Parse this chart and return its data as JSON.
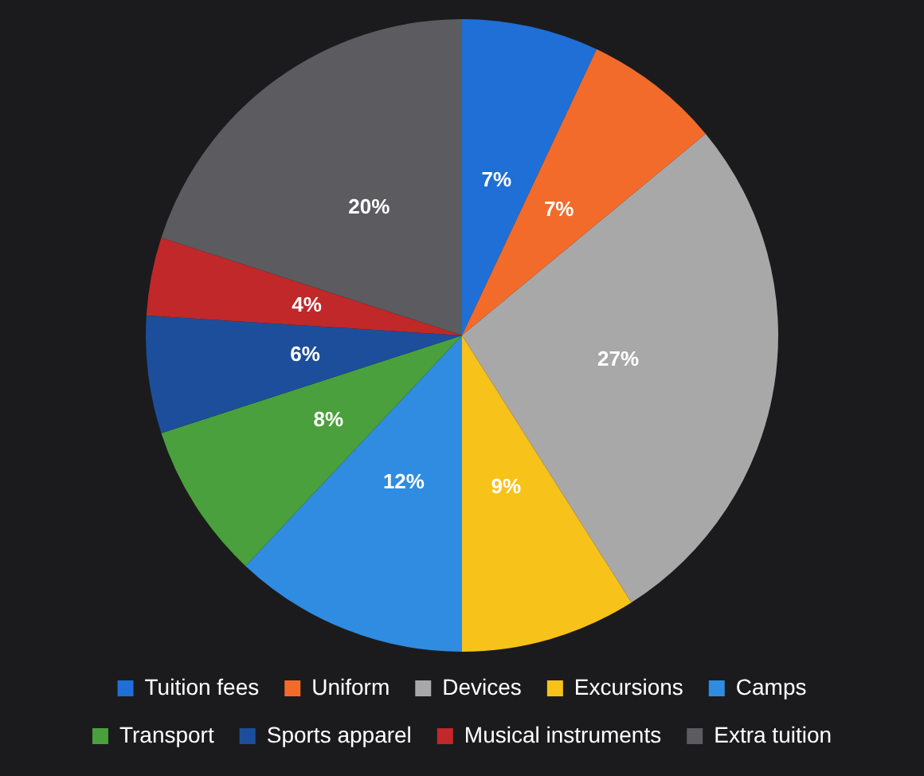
{
  "chart_data": {
    "type": "pie",
    "categories": [
      "Tuition fees",
      "Uniform",
      "Devices",
      "Excursions",
      "Camps",
      "Transport",
      "Sports apparel",
      "Musical instruments",
      "Extra tuition"
    ],
    "values": [
      7,
      7,
      27,
      9,
      12,
      8,
      6,
      4,
      20
    ],
    "colors": [
      "#1f6fd6",
      "#f26b2a",
      "#a8a8a8",
      "#f7c21a",
      "#2f8ce0",
      "#4aa03c",
      "#1c4e9c",
      "#c0282a",
      "#5b5b60"
    ],
    "value_labels": [
      "7%",
      "7%",
      "27%",
      "9%",
      "12%",
      "8%",
      "6%",
      "4%",
      "20%"
    ],
    "legend": "bottom"
  }
}
